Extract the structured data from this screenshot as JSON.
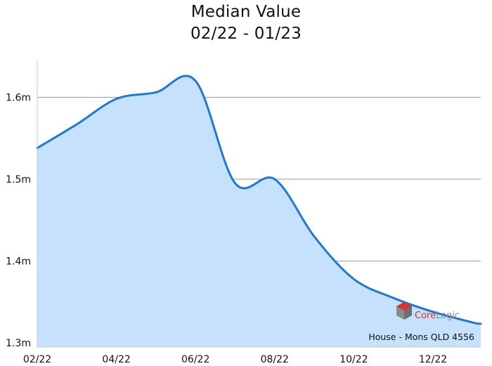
{
  "chart_data": {
    "type": "area",
    "title": "Median Value",
    "subtitle": "02/22 - 01/23",
    "x": [
      "02/22",
      "03/22",
      "04/22",
      "05/22",
      "06/22",
      "07/22",
      "08/22",
      "09/22",
      "10/22",
      "11/22",
      "12/22",
      "01/23"
    ],
    "x_tick_labels": [
      "02/22",
      "04/22",
      "06/22",
      "08/22",
      "10/22",
      "12/22"
    ],
    "series": [
      {
        "values": [
          1.538,
          1.567,
          1.598,
          1.606,
          1.62,
          1.495,
          1.5,
          1.43,
          1.378,
          1.355,
          1.338,
          1.325
        ]
      }
    ],
    "y_ticks": [
      1.3,
      1.4,
      1.5,
      1.6
    ],
    "y_tick_labels": [
      "1.3m",
      "1.4m",
      "1.5m",
      "1.6m"
    ],
    "ylim": [
      1.295,
      1.645
    ],
    "grid": "horizontal",
    "legend": "none",
    "footnote": "House - Mons QLD 4556",
    "watermark": "CoreLogic"
  },
  "colors": {
    "line": "#1f78d1",
    "fill": "#c5e1fb",
    "grid": "#9a9a9a",
    "axis": "#c8c8c8",
    "logo_red": "#d9332b",
    "logo_grey": "#8a8a8a"
  }
}
